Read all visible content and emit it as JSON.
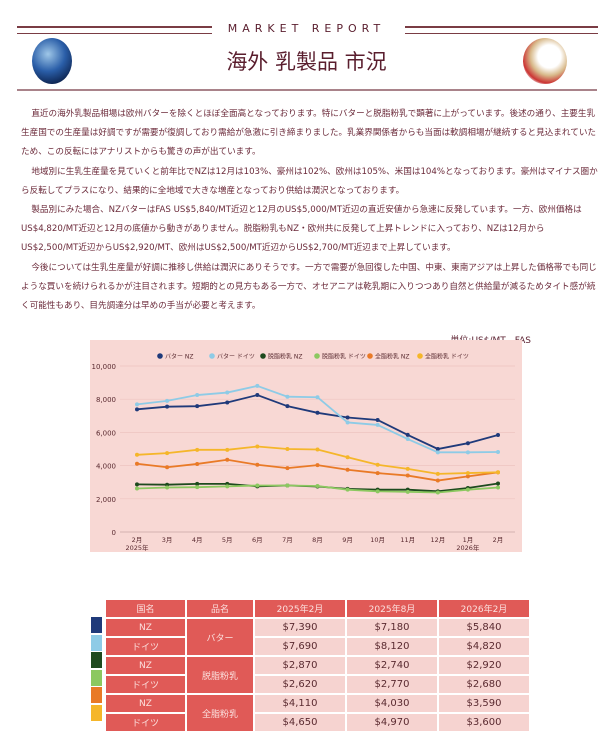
{
  "header": {
    "kicker": "MARKET REPORT",
    "title": "海外 乳製品 市況"
  },
  "paragraphs": [
    "直近の海外乳製品相場は欧州バターを除くとほぼ全面高となっております。特にバターと脱脂粉乳で顕著に上がっています。後述の通り、主要生乳生産国での生産量は好調ですが需要が復調しており需給が急激に引き締まりました。乳業界関係者からも当面は軟調相場が継続すると見込まれていたため、この反転にはアナリストからも驚きの声が出ています。",
    "地域別に生乳生産量を見ていくと前年比でNZは12月は103%、豪州は102%、欧州は105%、米国は104%となっております。豪州はマイナス圏から反転してプラスになり、結果的に全地域で大きな増産となっており供給は潤沢となっております。",
    "製品別にみた場合、NZバターはFAS US$5,840/MT近辺と12月のUS$5,000/MT近辺の直近安値から急速に反発しています。一方、欧州価格はUS$4,820/MT近辺と12月の底値から動きがありません。脱脂粉乳もNZ・欧州共に反発して上昇トレンドに入っており、NZは12月からUS$2,500/MT近辺からUS$2,920/MT、欧州はUS$2,500/MT近辺からUS$2,700/MT近辺まで上昇しています。",
    "今後については生乳生産量が好調に推移し供給は潤沢にありそうです。一方で需要が急回復した中国、中東、東南アジアは上昇した価格帯でも同じような買いを続けられるかが注目されます。短期的との見方もある一方で、オセアニアは乾乳期に入りつつあり自然と供給量が減るためタイト感が続く可能性もあり、目先調達分は早めの手当が必要と考えます。"
  ],
  "chart_data": {
    "type": "line",
    "unit_label": "単位:US$/MT、FAS",
    "categories": [
      "2月\n2025年",
      "3月",
      "4月",
      "5月",
      "6月",
      "7月",
      "8月",
      "9月",
      "10月",
      "11月",
      "12月",
      "1月\n2026年",
      "2月"
    ],
    "yticks": [
      "10,000",
      "8,000",
      "6,000",
      "4,000",
      "2,000",
      "0"
    ],
    "ylim": [
      0,
      10000
    ],
    "legend_position": "top",
    "series": [
      {
        "name": "バター NZ",
        "color": "#1f3a7a",
        "values": [
          7390,
          7550,
          7580,
          7800,
          8250,
          7580,
          7180,
          6900,
          6750,
          5850,
          5000,
          5350,
          5840
        ]
      },
      {
        "name": "バター ドイツ",
        "color": "#8ecbe6",
        "values": [
          7690,
          7900,
          8250,
          8400,
          8800,
          8150,
          8120,
          6600,
          6450,
          5600,
          4800,
          4800,
          4820
        ]
      },
      {
        "name": "脱脂粉乳 NZ",
        "color": "#1e4a1e",
        "values": [
          2870,
          2850,
          2900,
          2900,
          2750,
          2800,
          2740,
          2600,
          2550,
          2550,
          2450,
          2650,
          2920
        ]
      },
      {
        "name": "脱脂粉乳 ドイツ",
        "color": "#8cc860",
        "values": [
          2620,
          2680,
          2700,
          2750,
          2800,
          2800,
          2770,
          2550,
          2450,
          2420,
          2380,
          2550,
          2680
        ]
      },
      {
        "name": "全脂粉乳 NZ",
        "color": "#e97a27",
        "values": [
          4110,
          3900,
          4100,
          4350,
          4050,
          3850,
          4030,
          3750,
          3550,
          3400,
          3100,
          3350,
          3590
        ]
      },
      {
        "name": "全脂粉乳 ドイツ",
        "color": "#f5b62a",
        "values": [
          4650,
          4750,
          4950,
          4950,
          5150,
          5000,
          4970,
          4500,
          4050,
          3800,
          3500,
          3550,
          3600
        ]
      }
    ]
  },
  "table": {
    "headers": [
      "国名",
      "品名",
      "2025年2月",
      "2025年8月",
      "2026年2月"
    ],
    "rows": [
      {
        "country": "NZ",
        "product": "バター",
        "v": [
          "$7,390",
          "$7,180",
          "$5,840"
        ]
      },
      {
        "country": "ドイツ",
        "v": [
          "$7,690",
          "$8,120",
          "$4,820"
        ]
      },
      {
        "country": "NZ",
        "product": "脱脂粉乳",
        "v": [
          "$2,870",
          "$2,740",
          "$2,920"
        ]
      },
      {
        "country": "ドイツ",
        "v": [
          "$2,620",
          "$2,770",
          "$2,680"
        ]
      },
      {
        "country": "NZ",
        "product": "全脂粉乳",
        "v": [
          "$4,110",
          "$4,030",
          "$3,590"
        ]
      },
      {
        "country": "ドイツ",
        "v": [
          "$4,650",
          "$4,970",
          "$3,600"
        ]
      }
    ]
  }
}
